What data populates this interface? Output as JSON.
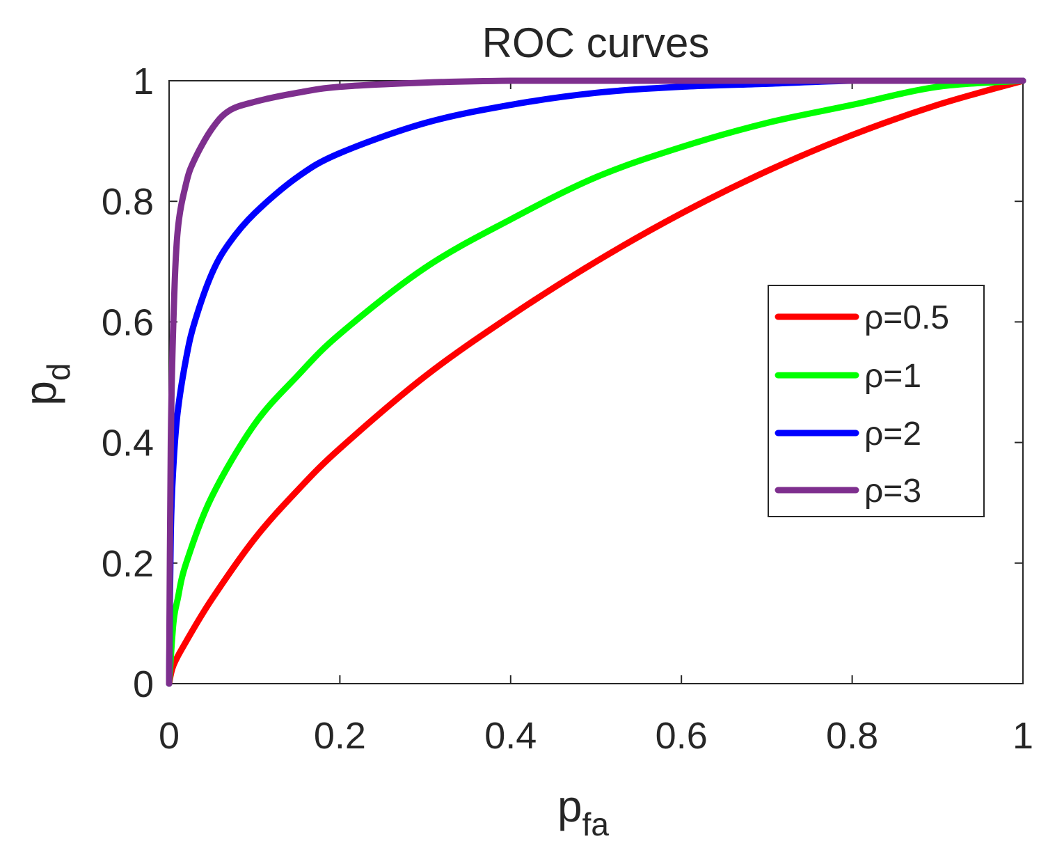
{
  "chart_data": {
    "type": "line",
    "title": "ROC curves",
    "xlabel": {
      "base": "p",
      "sub": "fa"
    },
    "ylabel": {
      "base": "p",
      "sub": "d"
    },
    "xlim": [
      0,
      1
    ],
    "ylim": [
      0,
      1
    ],
    "xticks": [
      0,
      0.2,
      0.4,
      0.6,
      0.8,
      1
    ],
    "yticks": [
      0,
      0.2,
      0.4,
      0.6,
      0.8,
      1
    ],
    "xtick_labels": [
      "0",
      "0.2",
      "0.4",
      "0.6",
      "0.8",
      "1"
    ],
    "ytick_labels": [
      "0",
      "0.2",
      "0.4",
      "0.6",
      "0.8",
      "1"
    ],
    "legend_position": "right-middle",
    "grid": false,
    "series": [
      {
        "name": "ρ=0.5",
        "color": "#ff0000",
        "x": [
          0,
          0.005,
          0.02,
          0.05,
          0.1,
          0.15,
          0.2,
          0.3,
          0.4,
          0.5,
          0.6,
          0.7,
          0.8,
          0.9,
          1
        ],
        "y": [
          0,
          0.03,
          0.07,
          0.14,
          0.24,
          0.32,
          0.39,
          0.51,
          0.61,
          0.7,
          0.78,
          0.85,
          0.91,
          0.96,
          1
        ]
      },
      {
        "name": "ρ=1",
        "color": "#00ff00",
        "x": [
          0,
          0.005,
          0.01,
          0.02,
          0.05,
          0.1,
          0.15,
          0.2,
          0.3,
          0.4,
          0.5,
          0.6,
          0.7,
          0.8,
          0.9,
          1
        ],
        "y": [
          0,
          0.1,
          0.14,
          0.2,
          0.31,
          0.43,
          0.51,
          0.58,
          0.69,
          0.77,
          0.84,
          0.89,
          0.93,
          0.96,
          0.99,
          1
        ]
      },
      {
        "name": "ρ=2",
        "color": "#0000ff",
        "x": [
          0,
          0.002,
          0.005,
          0.01,
          0.02,
          0.03,
          0.05,
          0.07,
          0.1,
          0.15,
          0.2,
          0.3,
          0.4,
          0.5,
          0.6,
          0.7,
          0.8,
          0.9,
          1
        ],
        "y": [
          0,
          0.25,
          0.36,
          0.45,
          0.54,
          0.6,
          0.68,
          0.73,
          0.78,
          0.84,
          0.88,
          0.93,
          0.96,
          0.98,
          0.99,
          0.995,
          1,
          1,
          1
        ]
      },
      {
        "name": "ρ=3",
        "color": "#7e2f8e",
        "x": [
          0,
          0.002,
          0.005,
          0.01,
          0.02,
          0.03,
          0.05,
          0.07,
          0.1,
          0.15,
          0.2,
          0.3,
          0.4,
          0.5,
          0.7,
          1
        ],
        "y": [
          0,
          0.4,
          0.6,
          0.75,
          0.83,
          0.87,
          0.92,
          0.95,
          0.965,
          0.98,
          0.99,
          0.997,
          1,
          1,
          1,
          1
        ]
      }
    ]
  }
}
